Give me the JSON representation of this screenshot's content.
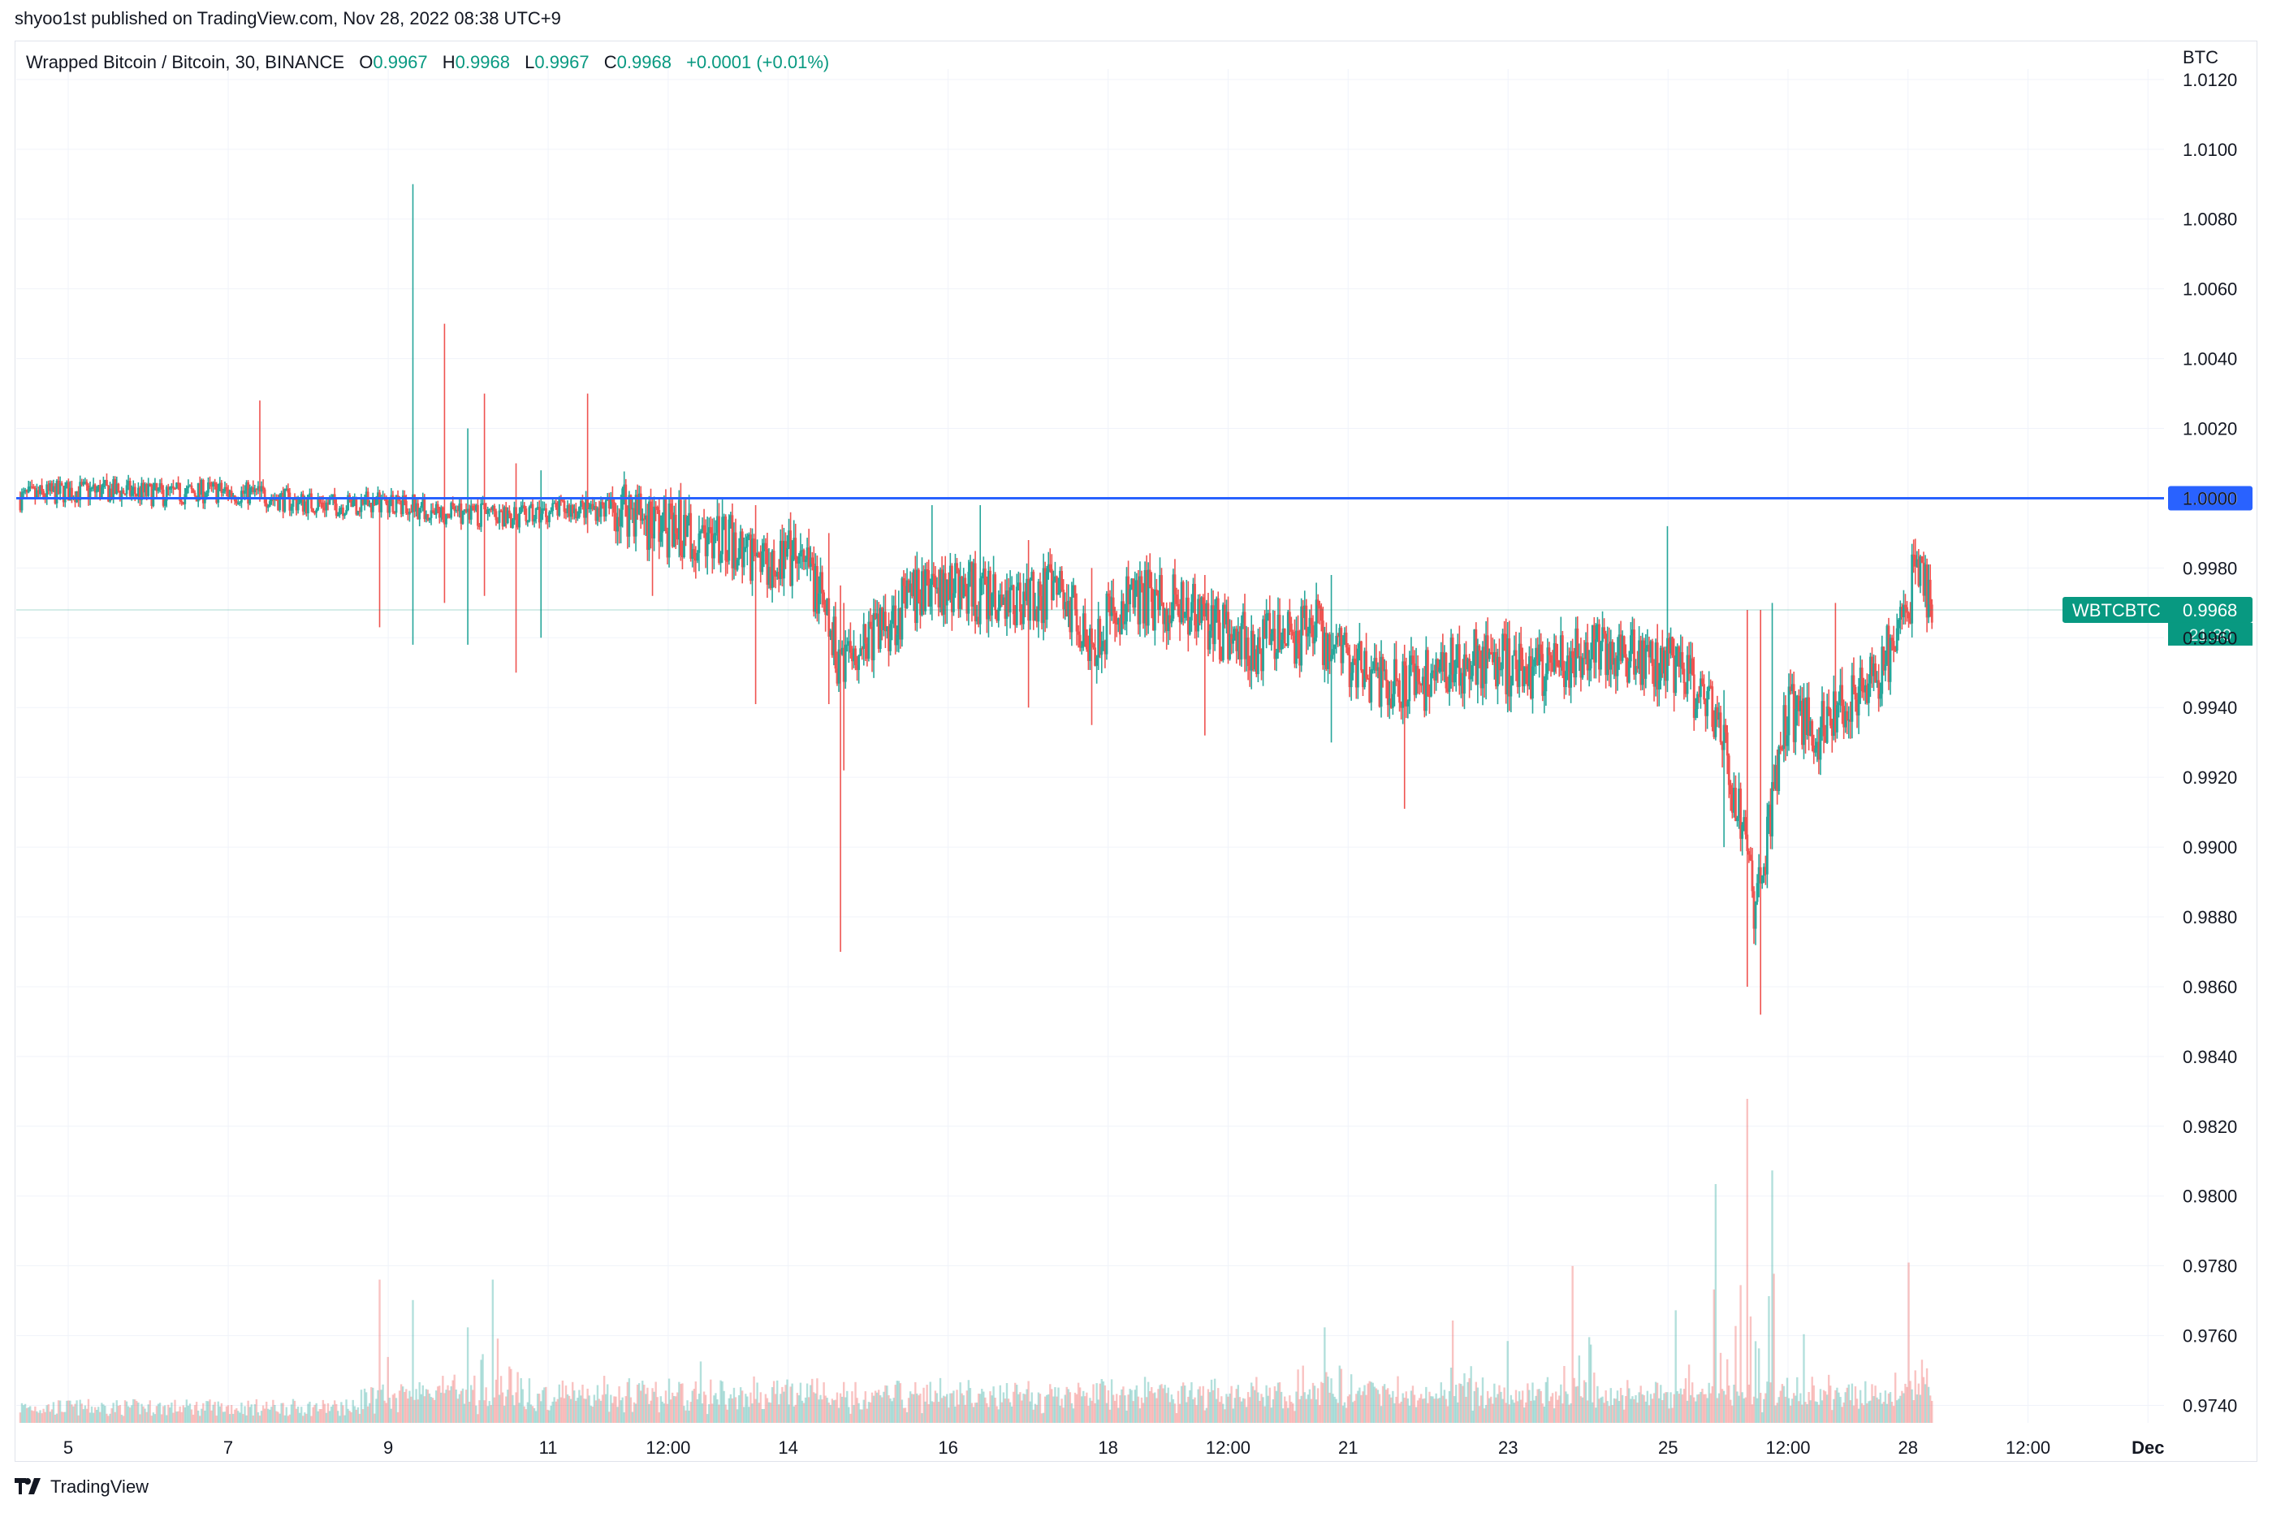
{
  "header": {
    "published_text": "shyoo1st published on TradingView.com, Nov 28, 2022 08:38 UTC+9"
  },
  "legend": {
    "symbol": "Wrapped Bitcoin / Bitcoin, 30, BINANCE",
    "o_label": "O",
    "o_value": "0.9967",
    "h_label": "H",
    "h_value": "0.9968",
    "l_label": "L",
    "l_value": "0.9967",
    "c_label": "C",
    "c_value": "0.9968",
    "change": "+0.0001 (+0.01%)"
  },
  "footer": {
    "brand": "TradingView"
  },
  "colors": {
    "up": "#26a69a",
    "down": "#ef5350",
    "level_line": "#2962ff",
    "price_tag": "#089981",
    "grid": "#f0f3fa"
  },
  "chart_data": {
    "type": "candlestick",
    "title": "Wrapped Bitcoin / Bitcoin, 30, BINANCE",
    "currency_label": "BTC",
    "y_ticks": [
      "1.0120",
      "1.0100",
      "1.0080",
      "1.0060",
      "1.0040",
      "1.0020",
      "1.0000",
      "0.9980",
      "0.9960",
      "0.9940",
      "0.9920",
      "0.9900",
      "0.9880",
      "0.9860",
      "0.9840",
      "0.9820",
      "0.9800",
      "0.9780",
      "0.9760",
      "0.9740"
    ],
    "ylim": [
      0.9735,
      1.0123
    ],
    "x_ticks": [
      "5",
      "7",
      "9",
      "11",
      "12:00",
      "14",
      "16",
      "18",
      "12:00",
      "21",
      "23",
      "25",
      "12:00",
      "28",
      "12:00",
      "Dec"
    ],
    "x_tick_positions_days": [
      5,
      7,
      9,
      11,
      12.5,
      14,
      16,
      18,
      19.5,
      21,
      23,
      25,
      26.5,
      28,
      29.5,
      31
    ],
    "xlim_days": [
      4.35,
      31.2
    ],
    "horizontal_level": {
      "value": 1.0,
      "label": "1.0000"
    },
    "last_price": {
      "symbol": "WBTCBTC",
      "value": "0.9968",
      "countdown": "21:30"
    },
    "price_path": [
      [
        4.4,
        1.0
      ],
      [
        5.0,
        1.0002
      ],
      [
        5.6,
        1.0002
      ],
      [
        6.2,
        1.0001
      ],
      [
        6.8,
        1.0002
      ],
      [
        7.4,
        1.0001
      ],
      [
        7.8,
        0.9999
      ],
      [
        8.4,
        0.9998
      ],
      [
        8.9,
        0.9999
      ],
      [
        9.3,
        0.9998
      ],
      [
        9.7,
        0.9995
      ],
      [
        10.0,
        0.9996
      ],
      [
        10.4,
        0.9994
      ],
      [
        10.8,
        0.9995
      ],
      [
        11.2,
        0.9997
      ],
      [
        11.6,
        0.9997
      ],
      [
        12.0,
        0.9998
      ],
      [
        12.3,
        0.9993
      ],
      [
        12.8,
        0.999
      ],
      [
        13.2,
        0.9987
      ],
      [
        13.6,
        0.9984
      ],
      [
        14.0,
        0.9982
      ],
      [
        14.3,
        0.9978
      ],
      [
        14.6,
        0.9955
      ],
      [
        15.0,
        0.996
      ],
      [
        15.4,
        0.9968
      ],
      [
        15.8,
        0.9975
      ],
      [
        16.2,
        0.9974
      ],
      [
        16.6,
        0.997
      ],
      [
        17.0,
        0.9972
      ],
      [
        17.4,
        0.9973
      ],
      [
        17.8,
        0.996
      ],
      [
        18.2,
        0.997
      ],
      [
        18.6,
        0.9971
      ],
      [
        19.0,
        0.9968
      ],
      [
        19.4,
        0.9962
      ],
      [
        19.8,
        0.9958
      ],
      [
        20.2,
        0.996
      ],
      [
        20.6,
        0.9962
      ],
      [
        21.0,
        0.9955
      ],
      [
        21.4,
        0.9948
      ],
      [
        21.8,
        0.9946
      ],
      [
        22.2,
        0.995
      ],
      [
        22.6,
        0.9955
      ],
      [
        23.0,
        0.9952
      ],
      [
        23.4,
        0.995
      ],
      [
        23.8,
        0.9955
      ],
      [
        24.2,
        0.9956
      ],
      [
        24.6,
        0.9955
      ],
      [
        25.0,
        0.9953
      ],
      [
        25.3,
        0.9945
      ],
      [
        25.6,
        0.9935
      ],
      [
        25.9,
        0.991
      ],
      [
        26.1,
        0.988
      ],
      [
        26.3,
        0.9915
      ],
      [
        26.5,
        0.994
      ],
      [
        26.9,
        0.9932
      ],
      [
        27.2,
        0.9942
      ],
      [
        27.6,
        0.995
      ],
      [
        27.9,
        0.996
      ],
      [
        28.1,
        0.998
      ],
      [
        28.3,
        0.9968
      ]
    ],
    "spikes": [
      [
        7.4,
        1.0028,
        0.9999
      ],
      [
        8.9,
        0.9997,
        0.9963
      ],
      [
        9.3,
        1.009,
        0.9958
      ],
      [
        9.7,
        1.005,
        0.997
      ],
      [
        10.0,
        1.002,
        0.9958
      ],
      [
        10.2,
        1.003,
        0.9972
      ],
      [
        10.6,
        1.001,
        0.995
      ],
      [
        10.9,
        1.0008,
        0.996
      ],
      [
        11.5,
        1.003,
        0.999
      ],
      [
        12.3,
        1.0,
        0.9972
      ],
      [
        13.6,
        0.9998,
        0.9941
      ],
      [
        14.5,
        0.999,
        0.9941
      ],
      [
        14.65,
        0.9975,
        0.987
      ],
      [
        14.7,
        0.997,
        0.9922
      ],
      [
        15.8,
        0.9998,
        0.9965
      ],
      [
        16.4,
        0.9998,
        0.9962
      ],
      [
        17.0,
        0.9988,
        0.994
      ],
      [
        17.8,
        0.998,
        0.9935
      ],
      [
        19.2,
        0.9978,
        0.9932
      ],
      [
        20.8,
        0.9978,
        0.993
      ],
      [
        21.7,
        0.9958,
        0.9911
      ],
      [
        25.0,
        0.9992,
        0.9953
      ],
      [
        25.7,
        0.9945,
        0.99
      ],
      [
        26.0,
        0.9968,
        0.986
      ],
      [
        26.15,
        0.9968,
        0.9852
      ],
      [
        26.3,
        0.997,
        0.99
      ],
      [
        27.1,
        0.997,
        0.993
      ]
    ],
    "volume_peaks": [
      [
        8.9,
        0.42
      ],
      [
        9.3,
        0.36
      ],
      [
        10.0,
        0.28
      ],
      [
        10.3,
        0.42
      ],
      [
        12.9,
        0.18
      ],
      [
        18.5,
        0.12
      ],
      [
        20.7,
        0.28
      ],
      [
        22.3,
        0.3
      ],
      [
        23.0,
        0.24
      ],
      [
        23.8,
        0.46
      ],
      [
        25.1,
        0.33
      ],
      [
        25.6,
        0.7
      ],
      [
        26.0,
        0.95
      ],
      [
        26.3,
        0.74
      ],
      [
        26.7,
        0.26
      ],
      [
        28.0,
        0.47
      ]
    ]
  }
}
